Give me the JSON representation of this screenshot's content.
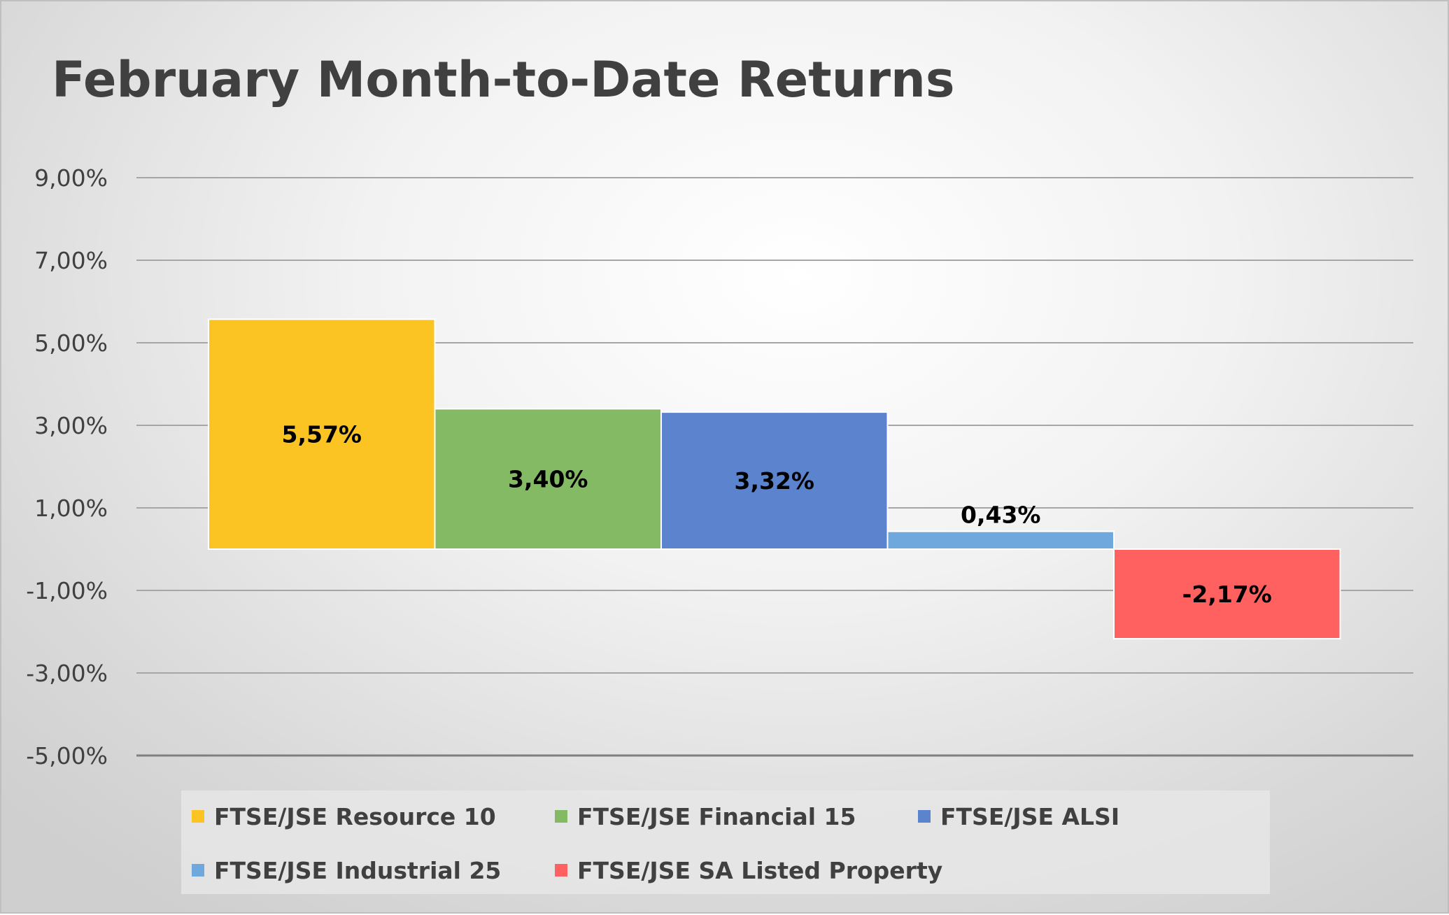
{
  "chart_data": {
    "type": "bar",
    "title": "February Month-to-Date Returns",
    "xlabel": "",
    "ylabel": "",
    "ylim": [
      -5,
      9
    ],
    "yticks": [
      9,
      7,
      5,
      3,
      1,
      -1,
      -3,
      -5
    ],
    "ytick_labels": [
      "9,00%",
      "7,00%",
      "5,00%",
      "3,00%",
      "1,00%",
      "-1,00%",
      "-3,00%",
      "-5,00%"
    ],
    "grid": true,
    "legend_position": "bottom",
    "series": [
      {
        "name": "FTSE/JSE Resource 10",
        "value": 5.57,
        "label": "5,57%",
        "color": "#FCC423"
      },
      {
        "name": "FTSE/JSE Financial 15",
        "value": 3.4,
        "label": "3,40%",
        "color": "#83BA63"
      },
      {
        "name": "FTSE/JSE ALSI",
        "value": 3.32,
        "label": "3,32%",
        "color": "#5B83CE"
      },
      {
        "name": "FTSE/JSE Industrial 25",
        "value": 0.43,
        "label": "0,43%",
        "color": "#6FA8DC"
      },
      {
        "name": "FTSE/JSE SA Listed Property",
        "value": -2.17,
        "label": "-2,17%",
        "color": "#FF6161"
      }
    ]
  }
}
